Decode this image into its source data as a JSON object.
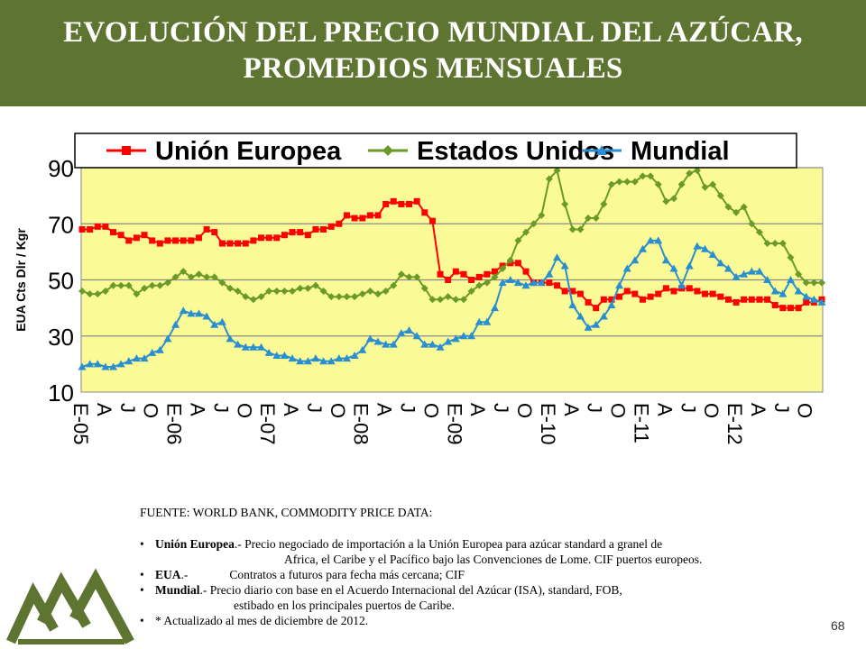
{
  "header": {
    "title_line1": "EVOLUCIÓN DEL PRECIO MUNDIAL DEL AZÚCAR,",
    "title_line2": "PROMEDIOS MENSUALES",
    "background_color": "#5e7431"
  },
  "chart_data": {
    "type": "line",
    "ylabel": "EUA Cts Dlr / Kgr",
    "ylim": [
      10,
      90
    ],
    "yticks": [
      10,
      30,
      50,
      70,
      90
    ],
    "grid": true,
    "legend_position": "top",
    "plot_background": "#fafa96",
    "x_tick_labels": [
      "E-05",
      "A",
      "J",
      "O",
      "E-06",
      "A",
      "J",
      "O",
      "E-07",
      "A",
      "J",
      "O",
      "E-08",
      "A",
      "J",
      "O",
      "E-09",
      "A",
      "J",
      "O",
      "E-10",
      "A",
      "J",
      "O",
      "E-11",
      "A",
      "J",
      "O",
      "E-12",
      "A",
      "J",
      "O"
    ],
    "x_tick_months": [
      0,
      3,
      6,
      9,
      12,
      15,
      18,
      21,
      24,
      27,
      30,
      33,
      36,
      39,
      42,
      45,
      48,
      51,
      54,
      57,
      60,
      63,
      66,
      69,
      72,
      75,
      78,
      81,
      84,
      87,
      90,
      93
    ],
    "series": [
      {
        "name": "Unión Europea",
        "color": "#ff0000",
        "marker": "square",
        "values": [
          68,
          68,
          69,
          69,
          67,
          66,
          64,
          65,
          66,
          64,
          63,
          64,
          64,
          64,
          64,
          65,
          68,
          67,
          63,
          63,
          63,
          63,
          64,
          65,
          65,
          65,
          66,
          67,
          67,
          66,
          68,
          68,
          69,
          70,
          73,
          72,
          72,
          73,
          73,
          77,
          78,
          77,
          77,
          78,
          74,
          71,
          52,
          50,
          53,
          52,
          50,
          51,
          52,
          53,
          55,
          56,
          56,
          53,
          49,
          49,
          49,
          48,
          46,
          46,
          45,
          42,
          40,
          43,
          43,
          44,
          46,
          45,
          43,
          44,
          45,
          47,
          46,
          47,
          47,
          46,
          45,
          45,
          44,
          43,
          42,
          43,
          43,
          43,
          43,
          41,
          40,
          40,
          40,
          42,
          42,
          43
        ]
      },
      {
        "name": "Estados Unidos",
        "color": "#6a9a28",
        "marker": "diamond",
        "values": [
          46,
          45,
          45,
          46,
          48,
          48,
          48,
          45,
          47,
          48,
          48,
          49,
          51,
          53,
          51,
          52,
          51,
          51,
          49,
          47,
          46,
          44,
          43,
          44,
          46,
          46,
          46,
          46,
          47,
          47,
          48,
          46,
          44,
          44,
          44,
          44,
          45,
          46,
          45,
          46,
          48,
          52,
          51,
          51,
          47,
          43,
          43,
          44,
          43,
          43,
          46,
          48,
          49,
          51,
          54,
          57,
          64,
          67,
          70,
          73,
          86,
          89,
          77,
          68,
          68,
          72,
          72,
          77,
          84,
          85,
          85,
          85,
          87,
          87,
          84,
          78,
          79,
          84,
          88,
          89,
          83,
          84,
          80,
          76,
          74,
          76,
          70,
          67,
          63,
          63,
          63,
          58,
          52,
          49,
          49,
          49
        ]
      },
      {
        "name": "Mundial",
        "color": "#2a8fd0",
        "marker": "triangle",
        "values": [
          19,
          20,
          20,
          19,
          19,
          20,
          21,
          22,
          22,
          24,
          25,
          29,
          34,
          39,
          38,
          38,
          37,
          34,
          35,
          29,
          27,
          26,
          26,
          26,
          24,
          23,
          23,
          22,
          21,
          21,
          22,
          21,
          21,
          22,
          22,
          23,
          25,
          29,
          28,
          27,
          27,
          31,
          32,
          30,
          27,
          27,
          26,
          28,
          29,
          30,
          30,
          35,
          35,
          40,
          49,
          50,
          49,
          48,
          49,
          49,
          52,
          58,
          55,
          41,
          37,
          33,
          34,
          37,
          41,
          48,
          54,
          57,
          61,
          64,
          64,
          57,
          54,
          48,
          55,
          62,
          61,
          59,
          56,
          54,
          51,
          52,
          53,
          53,
          50,
          46,
          45,
          50,
          46,
          44,
          43,
          42
        ]
      }
    ]
  },
  "notes": {
    "source": "FUENTE: WORLD BANK, COMMODITY PRICE DATA:",
    "ue_label": "Unión Europea",
    "ue_text1": ".- Precio negociado de importación a la Unión Europea para azúcar standard a granel de",
    "ue_text2": "Africa, el Caribe y el Pacífico bajo las Convenciones de Lome. CIF puertos europeos.",
    "eua_label": "EUA",
    "eua_sep": ".-",
    "eua_text": "Contratos a futuros para fecha más cercana; CIF",
    "mundial_label": "Mundial",
    "mundial_text1": ".- Precio diario con base en el Acuerdo Internacional del Azúcar (ISA), standard, FOB,",
    "mundial_text2": "estibado en los principales puertos de Caribe.",
    "updated": "* Actualizado al mes de diciembre de 2012."
  },
  "footer": {
    "page_number": "68",
    "logo_icon": "mountains-logo-icon",
    "logo_color": "#5e7431"
  }
}
